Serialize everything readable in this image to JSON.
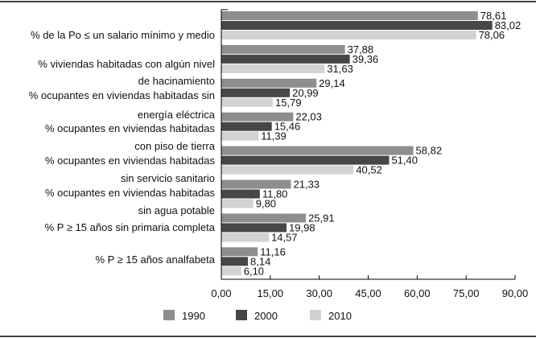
{
  "chart_data": {
    "type": "bar",
    "orientation": "horizontal",
    "category_label_lines": [
      "% de la Po ≤ un salario mínimo y medio",
      "% viviendas habitadas con algún nivel",
      "de hacinamiento",
      "% ocupantes en viviendas habitadas sin",
      "energía eléctrica",
      "% ocupantes en viviendas habitadas",
      "con piso de tierra",
      "% ocupantes en viviendas habitadas",
      "sin servicio sanitario",
      "% ocupantes en viviendas habitadas",
      "sin agua potable",
      "% P ≥ 15 años sin primaria completa",
      "% P ≥ 15 años analfabeta"
    ],
    "series": [
      {
        "name": "1990",
        "color": "#8e8e8e",
        "values": [
          78.61,
          37.88,
          29.14,
          22.03,
          58.82,
          21.33,
          25.91,
          11.16
        ],
        "labels": [
          "78,61",
          "37,88",
          "29,14",
          "22,03",
          "58,82",
          "21,33",
          "25,91",
          "11,16"
        ]
      },
      {
        "name": "2000",
        "color": "#474747",
        "values": [
          83.02,
          39.36,
          20.99,
          15.46,
          51.4,
          11.8,
          19.98,
          8.14
        ],
        "labels": [
          "83,02",
          "39,36",
          "20,99",
          "15,46",
          "51,40",
          "11,80",
          "19,98",
          "8,14"
        ]
      },
      {
        "name": "2010",
        "color": "#d2d2d2",
        "values": [
          78.06,
          31.63,
          15.79,
          11.39,
          40.52,
          9.8,
          14.57,
          6.1
        ],
        "labels": [
          "78,06",
          "31,63",
          "15,79",
          "11,39",
          "40,52",
          "9,80",
          "14,57",
          "6,10"
        ]
      }
    ],
    "xlim": [
      0,
      90
    ],
    "xticks": [
      "0,00",
      "15,00",
      "30,00",
      "45,00",
      "60,00",
      "75,00",
      "90,00"
    ],
    "grid": false,
    "legend_position": "bottom"
  }
}
